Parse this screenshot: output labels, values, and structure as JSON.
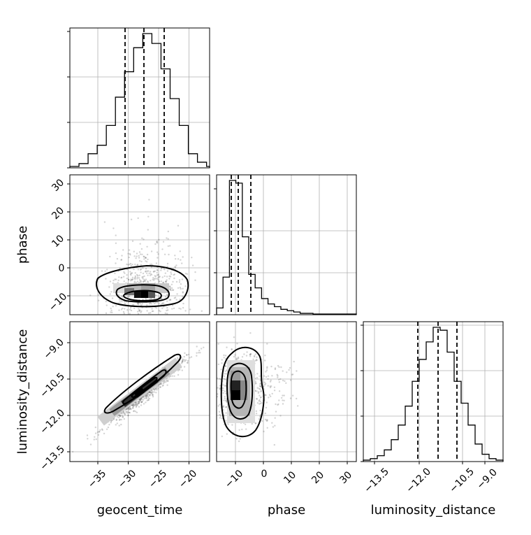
{
  "chart_data": {
    "type": "corner",
    "parameters": [
      {
        "name": "geocent_time",
        "label": "geocent_time",
        "range": [
          -40,
          -17
        ],
        "ticks": [
          -35,
          -30,
          -25,
          -20
        ],
        "tick_labels": [
          "−35",
          "−30",
          "−25",
          "−20"
        ],
        "quantiles": [
          -30.8,
          -27.5,
          -24.3
        ]
      },
      {
        "name": "phase",
        "label": "phase",
        "range": [
          -17,
          33
        ],
        "ticks": [
          -10,
          0,
          10,
          20,
          30
        ],
        "tick_labels": [
          "−10",
          "0",
          "10",
          "20",
          "30"
        ],
        "quantiles": [
          -11.8,
          -9.3,
          -4.8
        ]
      },
      {
        "name": "luminosity_distance",
        "label": "luminosity_distance",
        "range": [
          -14,
          -8.0
        ],
        "ticks": [
          -13.5,
          -12.0,
          -10.5,
          -9.0
        ],
        "tick_labels": [
          "−13.5",
          "−12.0",
          "−10.5",
          "−9.0"
        ],
        "quantiles": [
          -11.8,
          -11.05,
          -10.3
        ]
      }
    ],
    "histograms": [
      {
        "param": "geocent_time",
        "bin_edges": [
          -40,
          -38.5,
          -37,
          -35.5,
          -34,
          -32.5,
          -31,
          -29.5,
          -28,
          -26.5,
          -25,
          -23.5,
          -22,
          -20.5,
          -19,
          -17.5,
          -17
        ],
        "counts": [
          1,
          3,
          10,
          16,
          30,
          50,
          68,
          85,
          95,
          88,
          70,
          49,
          30,
          10,
          4,
          1
        ]
      },
      {
        "param": "phase",
        "bin_edges": [
          -17,
          -14.7,
          -12.4,
          -10.1,
          -7.8,
          -5.5,
          -3.2,
          -0.9,
          1.4,
          3.7,
          6.0,
          8.3,
          10.6,
          12.9,
          15.2,
          17.5,
          19.8,
          33
        ],
        "counts": [
          5,
          28,
          100,
          98,
          58,
          30,
          20,
          12,
          8,
          6,
          4,
          3,
          2,
          1,
          1,
          0.5,
          0.5
        ]
      },
      {
        "param": "luminosity_distance",
        "bin_edges": [
          -14,
          -13.7,
          -13.4,
          -13.1,
          -12.8,
          -12.5,
          -12.2,
          -11.9,
          -11.6,
          -11.3,
          -11.0,
          -10.7,
          -10.4,
          -10.1,
          -9.8,
          -9.5,
          -9.2,
          -8.9,
          -8.6,
          -8.3,
          -8.0
        ],
        "counts": [
          1,
          2,
          4,
          8,
          15,
          25,
          38,
          55,
          70,
          82,
          92,
          90,
          75,
          55,
          40,
          25,
          12,
          5,
          2,
          1
        ]
      }
    ],
    "scatter_panels": [
      {
        "x": "geocent_time",
        "y": "phase",
        "center": [
          -27.5,
          -10.5
        ],
        "spread": [
          3.2,
          6.5
        ],
        "correlation": 0.1
      },
      {
        "x": "geocent_time",
        "y": "luminosity_distance",
        "center": [
          -27.5,
          -11.05
        ],
        "spread": [
          3.2,
          0.7
        ],
        "correlation": 0.97
      },
      {
        "x": "phase",
        "y": "luminosity_distance",
        "center": [
          -9.5,
          -10.9
        ],
        "spread": [
          4.5,
          0.8
        ],
        "correlation": 0.05
      }
    ],
    "grid": true
  }
}
